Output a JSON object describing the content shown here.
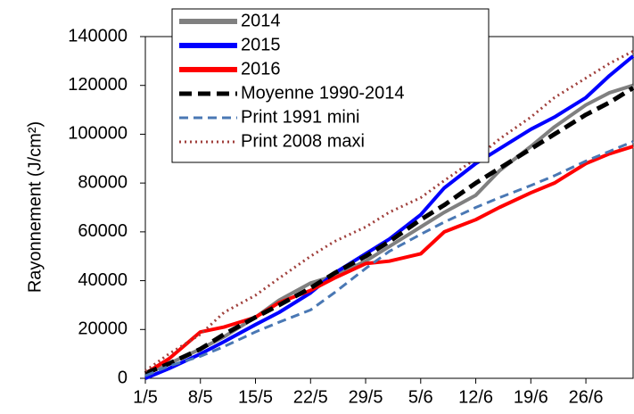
{
  "chart_data": {
    "type": "line",
    "y_label": "Rayonnement (J/cm²)",
    "x": [
      0,
      3,
      7,
      10,
      14,
      17,
      21,
      24,
      28,
      31,
      35,
      38,
      42,
      45,
      49,
      52,
      56,
      59,
      62
    ],
    "xlim": [
      0,
      62
    ],
    "xticks": [
      {
        "value": 0,
        "label": "1/5"
      },
      {
        "value": 7,
        "label": "8/5"
      },
      {
        "value": 14,
        "label": "15/5"
      },
      {
        "value": 21,
        "label": "22/5"
      },
      {
        "value": 28,
        "label": "29/5"
      },
      {
        "value": 35,
        "label": "5/6"
      },
      {
        "value": 42,
        "label": "12/6"
      },
      {
        "value": 49,
        "label": "19/6"
      },
      {
        "value": 56,
        "label": "26/6"
      }
    ],
    "ylim": [
      0,
      140000
    ],
    "yticks": [
      0,
      20000,
      40000,
      60000,
      80000,
      100000,
      120000,
      140000
    ],
    "grid": false,
    "legend": "upper left",
    "series": [
      {
        "name": "2014",
        "color": "#808080",
        "line_style": "solid",
        "values": [
          2000,
          6000,
          12000,
          17000,
          25000,
          32000,
          39000,
          42000,
          48000,
          54000,
          62000,
          68000,
          75000,
          85000,
          95000,
          103000,
          112000,
          117000,
          120000
        ]
      },
      {
        "name": "2015",
        "color": "#0000ff",
        "line_style": "solid",
        "values": [
          0,
          4000,
          10000,
          15000,
          22000,
          27000,
          35000,
          43000,
          51000,
          57000,
          67000,
          78000,
          88000,
          94000,
          102000,
          107000,
          115000,
          124000,
          132000
        ]
      },
      {
        "name": "2016",
        "color": "#ff0000",
        "line_style": "solid",
        "values": [
          2000,
          8000,
          19000,
          21000,
          25000,
          31000,
          36000,
          41000,
          47000,
          48000,
          51000,
          60000,
          65000,
          70000,
          76000,
          80000,
          88000,
          92000,
          95000
        ]
      },
      {
        "name": "Moyenne 1990-2014",
        "color": "#000000",
        "line_style": "dashed",
        "values": [
          2000,
          6000,
          12000,
          18000,
          25000,
          30000,
          37000,
          43000,
          50000,
          56000,
          65000,
          71000,
          80000,
          86000,
          94000,
          100000,
          108000,
          113000,
          119000
        ]
      },
      {
        "name": "Print 1991 mini",
        "color": "#4a78b4",
        "line_style": "dashed",
        "values": [
          1000,
          5000,
          9000,
          13000,
          19000,
          23000,
          28000,
          35000,
          45000,
          52000,
          59000,
          64000,
          70000,
          74000,
          79000,
          83000,
          89000,
          93000,
          97000
        ]
      },
      {
        "name": "Print 2008 maxi",
        "color": "#a0403c",
        "line_style": "dotted",
        "values": [
          3000,
          10000,
          18000,
          27000,
          34000,
          41000,
          50000,
          56000,
          62000,
          68000,
          74000,
          81000,
          90000,
          98000,
          107000,
          115000,
          123000,
          129000,
          134000
        ]
      }
    ]
  }
}
